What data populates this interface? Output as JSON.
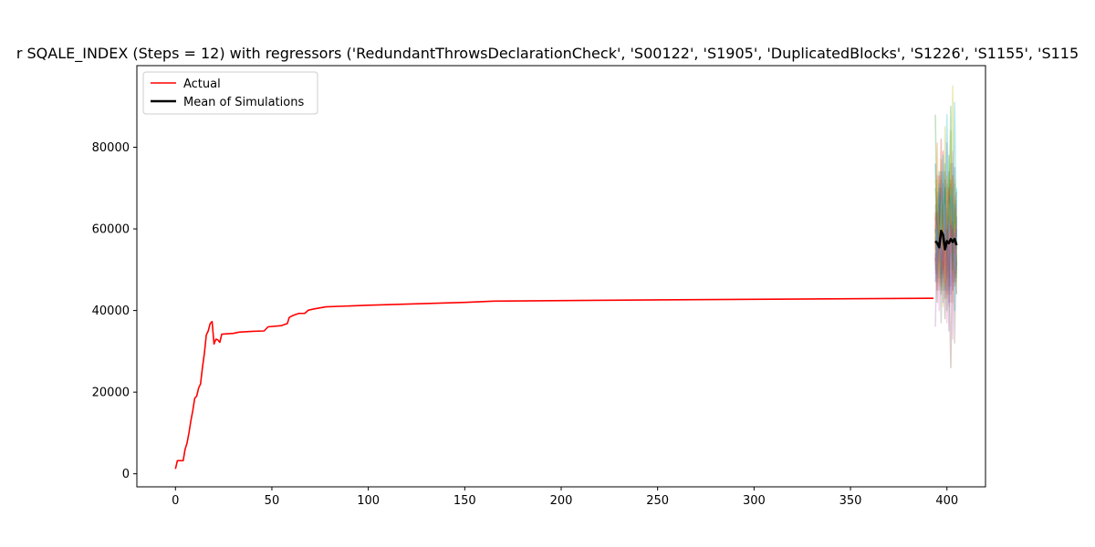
{
  "chart_data": {
    "type": "line",
    "title": "r SQALE_INDEX (Steps = 12) with regressors ('RedundantThrowsDeclarationCheck', 'S00122', 'S1905', 'DuplicatedBlocks', 'S1226', 'S1155', 'S115",
    "xlim": [
      -20,
      420
    ],
    "ylim": [
      -3200,
      100000
    ],
    "x_ticks": [
      0,
      50,
      100,
      150,
      200,
      250,
      300,
      350,
      400
    ],
    "x_tick_labels": [
      "0",
      "50",
      "100",
      "150",
      "200",
      "250",
      "300",
      "350",
      "400"
    ],
    "y_ticks": [
      0,
      20000,
      40000,
      60000,
      80000
    ],
    "y_tick_labels": [
      "0",
      "20000",
      "40000",
      "60000",
      "80000"
    ],
    "legend": {
      "placement": "upper-left",
      "entries": [
        {
          "label": "Actual",
          "color": "#ff0000"
        },
        {
          "label": "Mean of Simulations",
          "color": "#000000"
        }
      ]
    },
    "series": [
      {
        "name": "Actual",
        "color": "#ff0000",
        "points": [
          [
            0,
            1200
          ],
          [
            1,
            3200
          ],
          [
            3,
            3200
          ],
          [
            4,
            3200
          ],
          [
            5,
            6000
          ],
          [
            6,
            7500
          ],
          [
            7,
            10000
          ],
          [
            8,
            13000
          ],
          [
            9,
            15500
          ],
          [
            10,
            18500
          ],
          [
            11,
            19000
          ],
          [
            12,
            21000
          ],
          [
            13,
            22000
          ],
          [
            14,
            26000
          ],
          [
            15,
            29500
          ],
          [
            16,
            34000
          ],
          [
            17,
            35000
          ],
          [
            18,
            36800
          ],
          [
            19,
            37300
          ],
          [
            20,
            31800
          ],
          [
            21,
            33000
          ],
          [
            22,
            32800
          ],
          [
            23,
            32200
          ],
          [
            24,
            34200
          ],
          [
            30,
            34400
          ],
          [
            33,
            34700
          ],
          [
            40,
            34900
          ],
          [
            46,
            35000
          ],
          [
            48,
            36000
          ],
          [
            55,
            36300
          ],
          [
            58,
            36800
          ],
          [
            59,
            38300
          ],
          [
            61,
            38800
          ],
          [
            64,
            39300
          ],
          [
            67,
            39300
          ],
          [
            69,
            40100
          ],
          [
            72,
            40400
          ],
          [
            78,
            40900
          ],
          [
            100,
            41300
          ],
          [
            150,
            42000
          ],
          [
            165,
            42300
          ],
          [
            250,
            42600
          ],
          [
            393,
            43000
          ]
        ]
      },
      {
        "name": "Mean of Simulations",
        "color": "#000000",
        "points": [
          [
            394,
            57000
          ],
          [
            395,
            56500
          ],
          [
            396,
            55500
          ],
          [
            397,
            59500
          ],
          [
            398,
            58500
          ],
          [
            399,
            55000
          ],
          [
            400,
            57000
          ],
          [
            401,
            56500
          ],
          [
            402,
            57500
          ],
          [
            403,
            56800
          ],
          [
            404,
            57500
          ],
          [
            405,
            56000
          ]
        ]
      }
    ],
    "simulations": {
      "x_start": 394,
      "steps": 12,
      "opacity": 0.3,
      "colors": [
        "#1f77b4",
        "#ff7f0e",
        "#2ca02c",
        "#d62728",
        "#9467bd",
        "#8c564b",
        "#e377c2",
        "#7f7f7f",
        "#bcbd22",
        "#17becf"
      ],
      "paths": [
        [
          58000,
          52000,
          66000,
          48000,
          71000,
          45000,
          63000,
          54000,
          68000,
          47000,
          62000,
          55000
        ],
        [
          55000,
          64000,
          47000,
          72000,
          51000,
          67000,
          43000,
          70000,
          56000,
          61000,
          49000,
          65000
        ],
        [
          60000,
          49000,
          74000,
          53000,
          45000,
          76000,
          58000,
          44000,
          71000,
          52000,
          67000,
          50000
        ],
        [
          52000,
          69000,
          57000,
          46000,
          79000,
          54000,
          64000,
          48000,
          59000,
          73000,
          46000,
          60000
        ],
        [
          63000,
          54000,
          45000,
          68000,
          57000,
          49000,
          81000,
          55000,
          42000,
          66000,
          58000,
          52000
        ],
        [
          57000,
          61000,
          70000,
          44000,
          62000,
          72000,
          50000,
          66000,
          76000,
          45000,
          54000,
          69000
        ],
        [
          49000,
          73000,
          59000,
          63000,
          47000,
          58000,
          69000,
          41000,
          63000,
          79000,
          51000,
          57000
        ],
        [
          66000,
          47000,
          62000,
          56000,
          69000,
          43000,
          52000,
          74000,
          50000,
          56000,
          71000,
          47000
        ],
        [
          54000,
          58000,
          51000,
          77000,
          41000,
          64000,
          56000,
          60000,
          84000,
          48000,
          63000,
          55000
        ],
        [
          59000,
          66000,
          54000,
          49000,
          74000,
          61000,
          45000,
          68000,
          53000,
          70000,
          40000,
          62000
        ],
        [
          47000,
          56000,
          68000,
          60000,
          52000,
          70000,
          62000,
          51000,
          46000,
          64000,
          75000,
          49000
        ],
        [
          61000,
          51000,
          57000,
          65000,
          59000,
          47000,
          73000,
          57000,
          67000,
          42000,
          59000,
          66000
        ],
        [
          70000,
          62000,
          48000,
          54000,
          66000,
          56000,
          40000,
          78000,
          58000,
          62000,
          53000,
          44000
        ],
        [
          53000,
          45000,
          73000,
          58000,
          49000,
          65000,
          60000,
          46000,
          72000,
          54000,
          68000,
          58000
        ],
        [
          62000,
          68000,
          52000,
          47000,
          63000,
          51000,
          67000,
          59000,
          44000,
          76000,
          48000,
          63000
        ],
        [
          56000,
          59000,
          64000,
          70000,
          55000,
          74000,
          48000,
          63000,
          61000,
          50000,
          65000,
          51000
        ],
        [
          51000,
          63000,
          60000,
          51000,
          71000,
          59000,
          55000,
          53000,
          65000,
          59000,
          56000,
          67000
        ],
        [
          64000,
          50000,
          56000,
          62000,
          48000,
          68000,
          71000,
          49000,
          57000,
          67000,
          61000,
          53000
        ],
        [
          58000,
          72000,
          46000,
          66000,
          60000,
          53000,
          59000,
          72000,
          49000,
          55000,
          72000,
          46000
        ],
        [
          50000,
          57000,
          69000,
          52000,
          67000,
          62000,
          54000,
          58000,
          70000,
          61000,
          50000,
          70000
        ],
        [
          76000,
          53000,
          61000,
          74000,
          53000,
          58000,
          65000,
          45000,
          62000,
          52000,
          66000,
          56000
        ],
        [
          55000,
          81000,
          50000,
          58000,
          61000,
          46000,
          70000,
          65000,
          54000,
          73000,
          58000,
          61000
        ],
        [
          88000,
          56000,
          63000,
          45000,
          65000,
          70000,
          53000,
          61000,
          90000,
          50000,
          64000,
          48000
        ],
        [
          59000,
          64000,
          55000,
          82000,
          50000,
          60000,
          44000,
          70000,
          58000,
          60000,
          54000,
          63000
        ],
        [
          36000,
          60000,
          52000,
          57000,
          42000,
          63000,
          58000,
          35000,
          61000,
          45000,
          57000,
          60000
        ],
        [
          54000,
          42000,
          66000,
          49000,
          58000,
          38000,
          61000,
          54000,
          26000,
          56000,
          47000,
          52000
        ],
        [
          62000,
          58000,
          40000,
          61000,
          52000,
          66000,
          37000,
          62000,
          55000,
          33000,
          61000,
          44000
        ],
        [
          57000,
          48000,
          61000,
          37000,
          64000,
          55000,
          63000,
          42000,
          66000,
          58000,
          32000,
          57000
        ],
        [
          72000,
          67000,
          58000,
          63000,
          55000,
          85000,
          60000,
          66000,
          61000,
          95000,
          59000,
          64000
        ],
        [
          60000,
          55000,
          71000,
          59000,
          78000,
          57000,
          88000,
          59000,
          68000,
          62000,
          91000,
          58000
        ]
      ]
    }
  }
}
